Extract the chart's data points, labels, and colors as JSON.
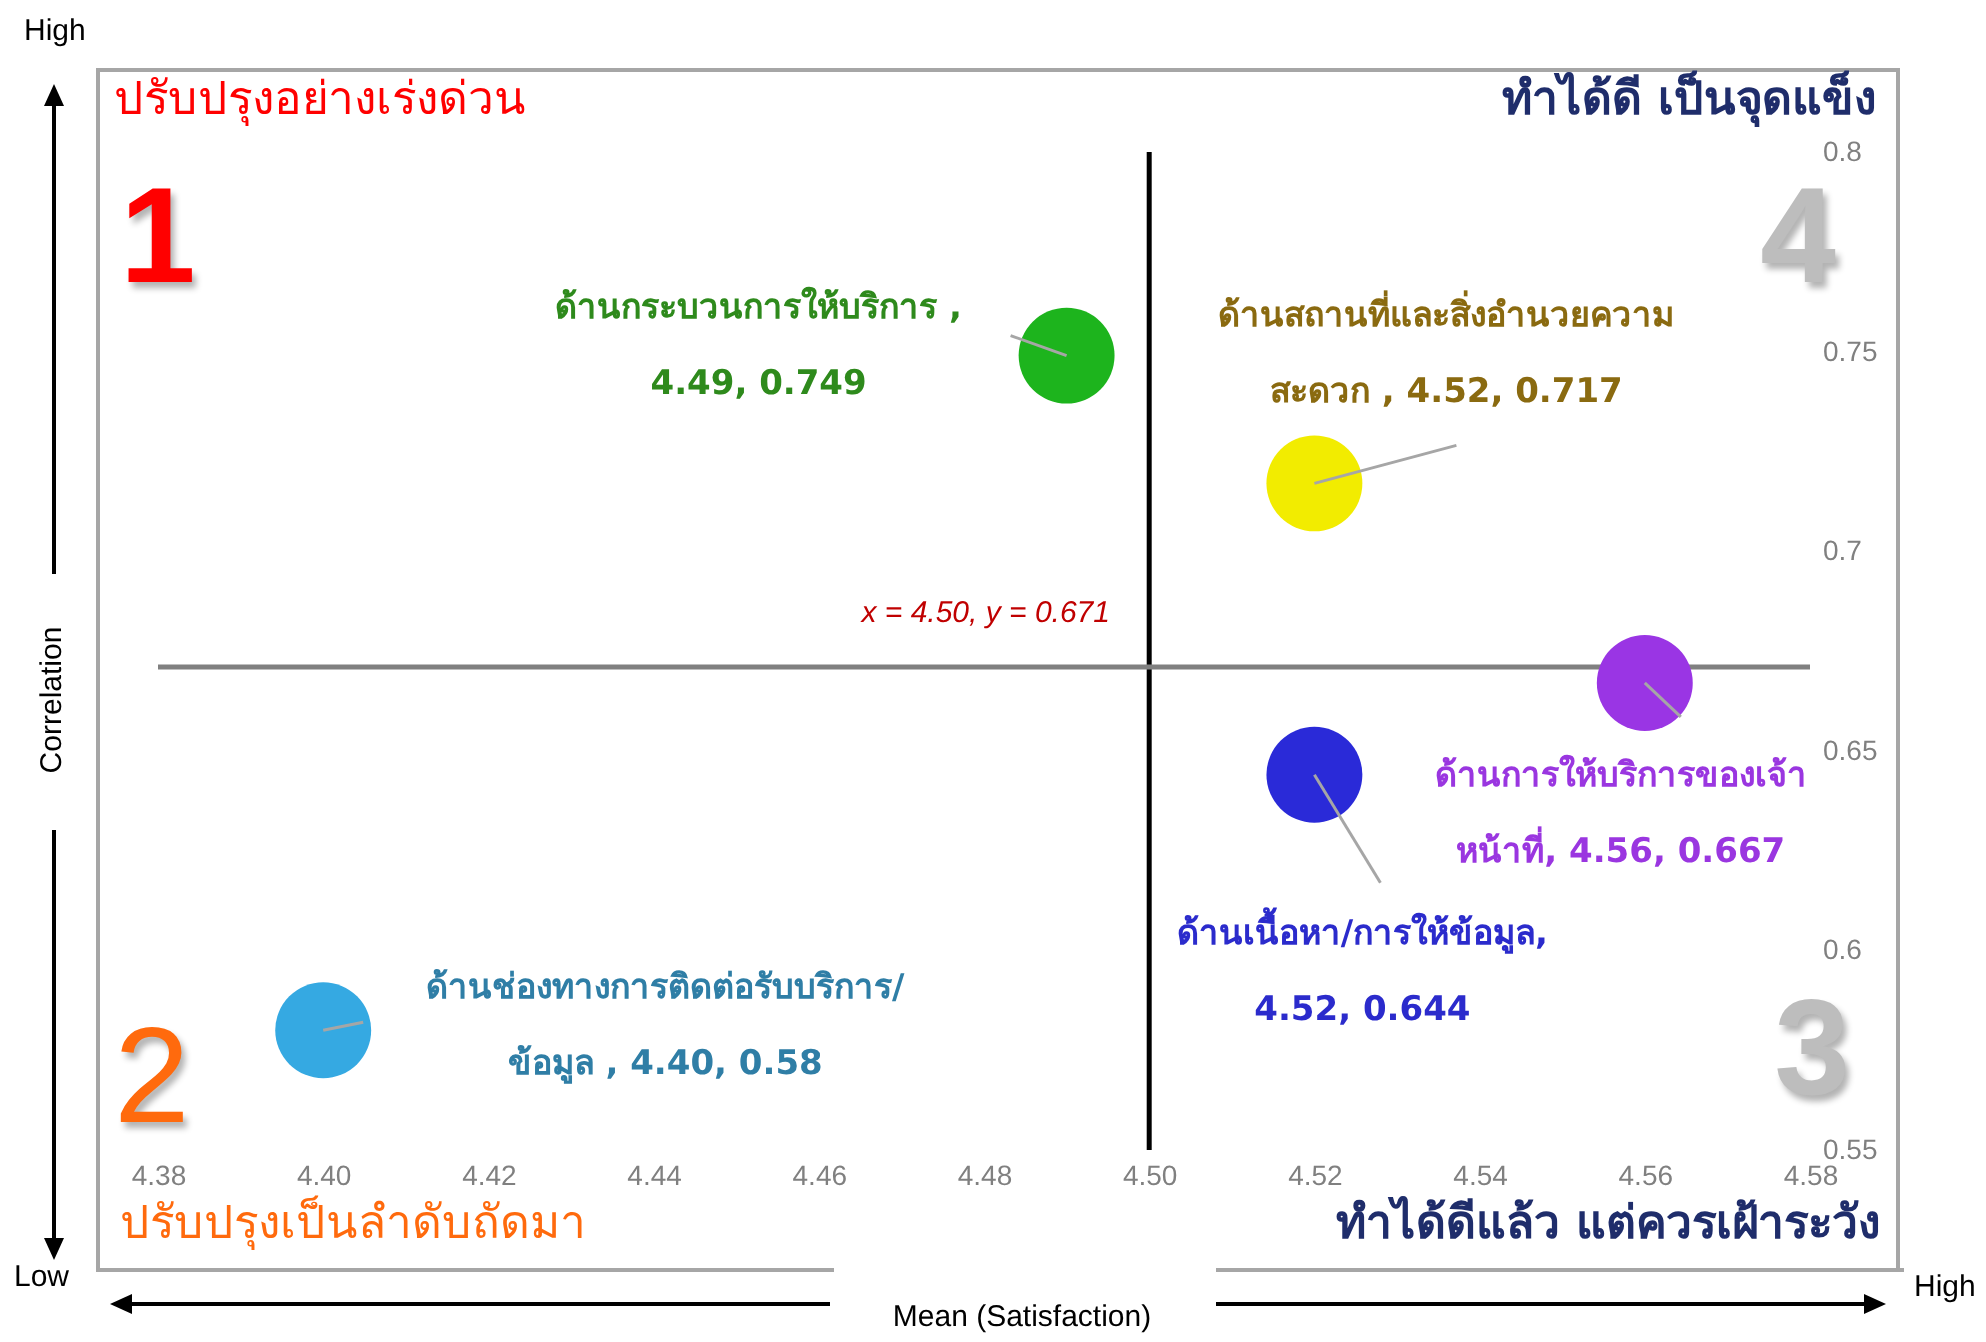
{
  "chart_data": {
    "type": "scatter",
    "xlabel": "Mean (Satisfaction)",
    "ylabel": "Correlation",
    "xlim": [
      4.38,
      4.58
    ],
    "xticks": [
      4.38,
      {
        "value": 4.4,
        "label": "4.40"
      },
      4.42,
      4.44,
      4.46,
      4.48,
      {
        "value": 4.5,
        "label": "4.50"
      },
      4.52,
      4.54,
      4.56,
      4.58
    ],
    "ylim": [
      0.55,
      0.8
    ],
    "yticks": [
      0.55,
      0.6,
      0.65,
      0.7,
      0.75,
      0.8
    ],
    "marker": "circle",
    "series": [
      {
        "name": "ด้านกระบวนการให้บริการ",
        "color": "#1db41d",
        "x": [
          4.49
        ],
        "values": [
          0.749
        ],
        "value_labels": [
          " , 4.49, 0.749"
        ]
      },
      {
        "name": "ด้านสถานที่และสิ่งอำนวยความสะดวก",
        "color": "#f2ec00",
        "x": [
          4.52
        ],
        "values": [
          0.717
        ],
        "value_labels": [
          " , 4.52, 0.717"
        ]
      },
      {
        "name": "ด้านการให้บริการของเจ้าหน้าที่",
        "color": "#9a35e4",
        "x": [
          4.56
        ],
        "values": [
          0.667
        ],
        "value_labels": [
          ", 4.56, 0.667"
        ]
      },
      {
        "name": "ด้านเนื้อหา/การให้ข้อมูล",
        "color": "#2a2ad8",
        "x": [
          4.52
        ],
        "values": [
          0.644
        ],
        "value_labels": [
          ", 4.52, 0.644"
        ]
      },
      {
        "name": "ด้านช่องทางการติดต่อรับบริการ/ข้อมูล",
        "color": "#35a9e2",
        "x": [
          4.4
        ],
        "values": [
          0.58
        ],
        "value_labels": [
          " , 4.40, 0.58"
        ]
      }
    ],
    "ref_lines": [
      {
        "axis": "x",
        "value": 4.5,
        "color": "#000000"
      },
      {
        "axis": "y",
        "value": 0.671,
        "color": "#808080"
      }
    ],
    "annotations": [
      "High",
      "ปรับปรุงอย่างเร่งด่วน",
      "ทำได้ดี เป็นจุดแข็ง",
      "1",
      "4",
      "x = 4.50, y = 0.671",
      "2",
      "3",
      "ปรับปรุงเป็นลำดับถัดมา",
      "ทำได้ดีแล้ว แต่ควรเฝ้าระวัง",
      "Low",
      "High"
    ]
  }
}
